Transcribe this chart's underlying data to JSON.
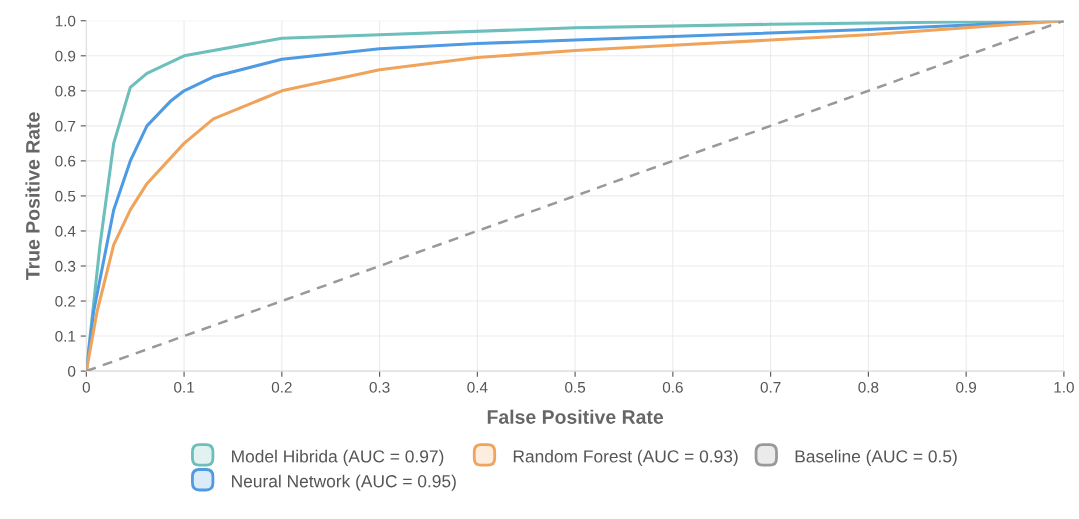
{
  "chart_data": {
    "type": "line",
    "xlabel": "False Positive Rate",
    "ylabel": "True Positive Rate",
    "xlim": [
      0,
      1.0
    ],
    "ylim": [
      0,
      1.0
    ],
    "xticks": [
      0,
      0.1,
      0.2,
      0.3,
      0.4,
      0.5,
      0.6,
      0.7,
      0.8,
      0.9,
      {
        "value": 1.0,
        "label": "1.0"
      }
    ],
    "yticks": [
      0,
      0.1,
      0.2,
      0.3,
      0.4,
      0.5,
      0.6,
      0.7,
      0.8,
      0.9,
      {
        "value": 1.0,
        "label": "1.0"
      }
    ],
    "grid": true,
    "legend": "bottom",
    "marker": "none",
    "series": [
      {
        "name": "Model Hibrida (AUC = 0.97)",
        "color": "#6cbfbb",
        "line_style": "solid",
        "x": [
          0,
          0.014,
          0.028,
          0.045,
          0.062,
          0.1,
          0.2,
          0.3,
          0.5,
          0.7,
          1.0
        ],
        "values": [
          0,
          0.36,
          0.65,
          0.81,
          0.85,
          0.9,
          0.95,
          0.96,
          0.98,
          0.99,
          1.0
        ]
      },
      {
        "name": "Neural Network (AUC = 0.95)",
        "color": "#4f9be3",
        "line_style": "solid",
        "x": [
          0,
          0.0075,
          0.028,
          0.045,
          0.062,
          0.086,
          0.1,
          0.13,
          0.2,
          0.3,
          0.4,
          0.5,
          0.6,
          0.8,
          1.0
        ],
        "values": [
          0,
          0.17,
          0.46,
          0.6,
          0.7,
          0.77,
          0.8,
          0.84,
          0.89,
          0.92,
          0.935,
          0.945,
          0.955,
          0.975,
          1.0
        ]
      },
      {
        "name": "Random Forest (AUC = 0.93)",
        "color": "#f0a35a",
        "line_style": "solid",
        "x": [
          0,
          0.011,
          0.028,
          0.045,
          0.062,
          0.1,
          0.13,
          0.165,
          0.2,
          0.3,
          0.4,
          0.5,
          0.6,
          0.7,
          0.8,
          0.9,
          1.0
        ],
        "values": [
          0,
          0.17,
          0.36,
          0.46,
          0.535,
          0.65,
          0.72,
          0.76,
          0.8,
          0.86,
          0.895,
          0.915,
          0.93,
          0.945,
          0.96,
          0.98,
          1.0
        ]
      },
      {
        "name": "Baseline (AUC = 0.5)",
        "color": "#999999",
        "line_style": "dashed",
        "x": [
          0,
          1.0
        ],
        "values": [
          0,
          1.0
        ]
      }
    ]
  }
}
